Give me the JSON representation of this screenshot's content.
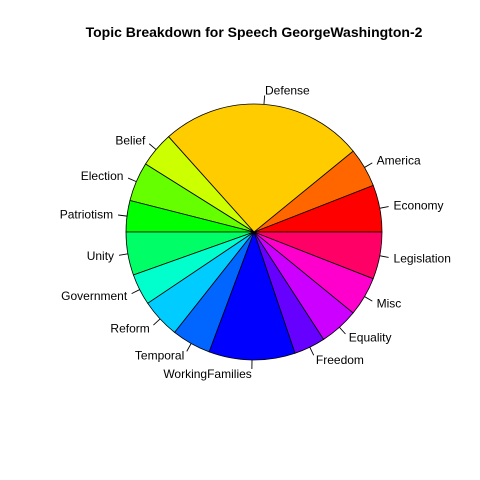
{
  "chart_data": {
    "type": "pie",
    "title": "Topic Breakdown for Speech GeorgeWashington-2",
    "direction": "counterclockwise",
    "start": "east",
    "slices": [
      {
        "label": "Economy",
        "value": 6.0,
        "color": "#FF0000"
      },
      {
        "label": "America",
        "value": 5.0,
        "color": "#FF6600"
      },
      {
        "label": "Defense",
        "value": 26.0,
        "color": "#FFCC00"
      },
      {
        "label": "Belief",
        "value": 4.5,
        "color": "#CCFF00"
      },
      {
        "label": "Election",
        "value": 5.0,
        "color": "#66FF00"
      },
      {
        "label": "Patriotism",
        "value": 4.0,
        "color": "#00FF00"
      },
      {
        "label": "Unity",
        "value": 5.5,
        "color": "#00FF66"
      },
      {
        "label": "Government",
        "value": 4.0,
        "color": "#00FFCC"
      },
      {
        "label": "Reform",
        "value": 5.0,
        "color": "#00CCFF"
      },
      {
        "label": "Temporal",
        "value": 5.0,
        "color": "#0066FF"
      },
      {
        "label": "WorkingFamilies",
        "value": 11.0,
        "color": "#0000FF"
      },
      {
        "label": "Freedom",
        "value": 4.0,
        "color": "#6600FF"
      },
      {
        "label": "Equality",
        "value": 5.0,
        "color": "#CC00FF"
      },
      {
        "label": "Misc",
        "value": 5.0,
        "color": "#FF00CC"
      },
      {
        "label": "Legislation",
        "value": 6.0,
        "color": "#FF0066"
      }
    ]
  }
}
